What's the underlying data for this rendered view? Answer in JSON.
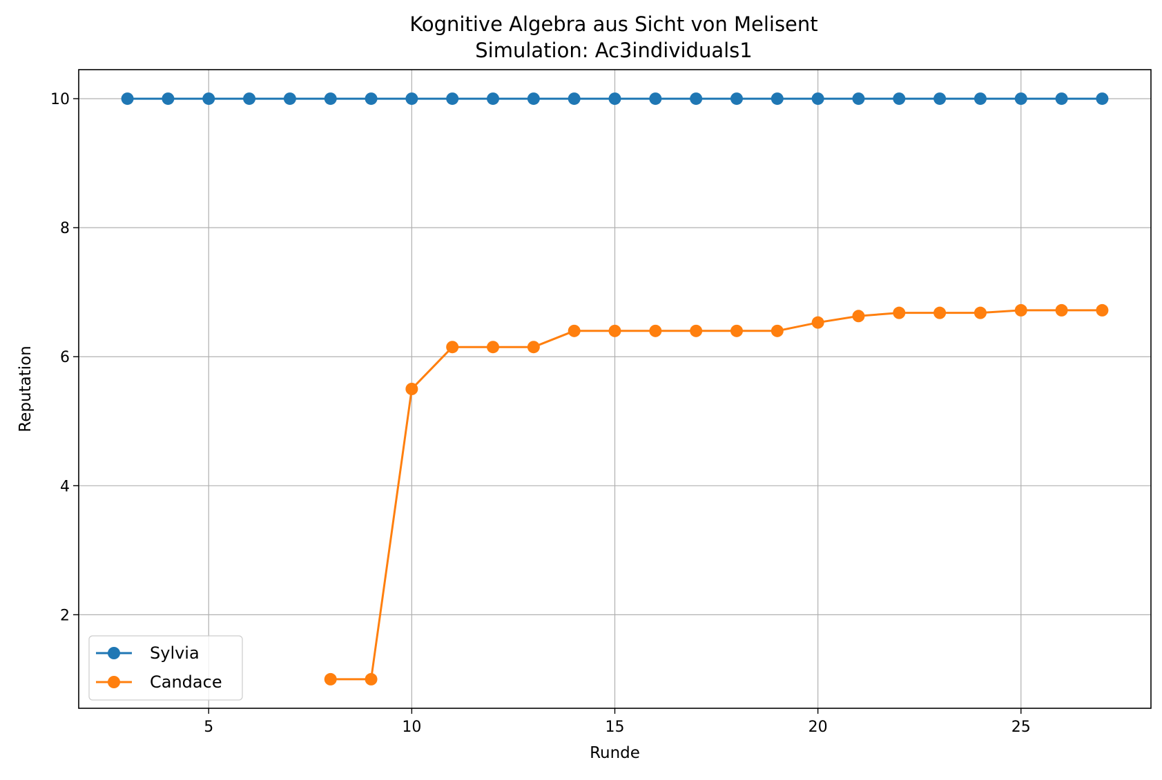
{
  "chart_data": {
    "type": "line",
    "title": "Kognitive Algebra aus Sicht von Melisent",
    "subtitle": "Simulation: Ac3individuals1",
    "xlabel": "Runde",
    "ylabel": "Reputation",
    "xlim": [
      1.8,
      28.2
    ],
    "ylim": [
      0.55,
      10.45
    ],
    "xticks": [
      5,
      10,
      15,
      20,
      25
    ],
    "yticks": [
      2,
      4,
      6,
      8,
      10
    ],
    "grid": true,
    "legend_position": "lower-left",
    "series": [
      {
        "name": "Sylvia",
        "color": "#1f77b4",
        "x": [
          3,
          4,
          5,
          6,
          7,
          8,
          9,
          10,
          11,
          12,
          13,
          14,
          15,
          16,
          17,
          18,
          19,
          20,
          21,
          22,
          23,
          24,
          25,
          26,
          27
        ],
        "y": [
          10,
          10,
          10,
          10,
          10,
          10,
          10,
          10,
          10,
          10,
          10,
          10,
          10,
          10,
          10,
          10,
          10,
          10,
          10,
          10,
          10,
          10,
          10,
          10,
          10
        ]
      },
      {
        "name": "Candace",
        "color": "#ff7f0e",
        "x": [
          8,
          9,
          10,
          11,
          12,
          13,
          14,
          15,
          16,
          17,
          18,
          19,
          20,
          21,
          22,
          23,
          24,
          25,
          26,
          27
        ],
        "y": [
          1.0,
          1.0,
          5.5,
          6.15,
          6.15,
          6.15,
          6.4,
          6.4,
          6.4,
          6.4,
          6.4,
          6.4,
          6.53,
          6.63,
          6.68,
          6.68,
          6.68,
          6.72,
          6.72,
          6.72
        ]
      }
    ]
  }
}
